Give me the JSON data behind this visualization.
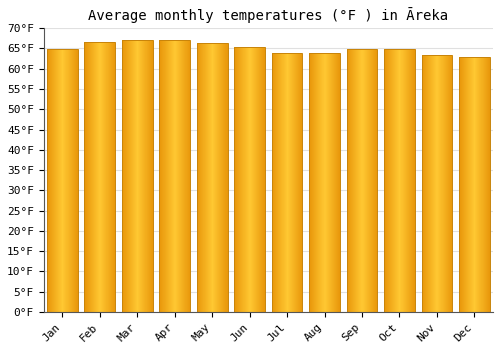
{
  "title": "Average monthly temperatures (°F ) in Āreka",
  "months": [
    "Jan",
    "Feb",
    "Mar",
    "Apr",
    "May",
    "Jun",
    "Jul",
    "Aug",
    "Sep",
    "Oct",
    "Nov",
    "Dec"
  ],
  "values": [
    64.8,
    66.5,
    67.2,
    67.0,
    66.3,
    65.3,
    64.0,
    64.0,
    64.8,
    64.8,
    63.5,
    63.0
  ],
  "ylim": [
    0,
    70
  ],
  "yticks": [
    0,
    5,
    10,
    15,
    20,
    25,
    30,
    35,
    40,
    45,
    50,
    55,
    60,
    65,
    70
  ],
  "ytick_labels": [
    "0°F",
    "5°F",
    "10°F",
    "15°F",
    "20°F",
    "25°F",
    "30°F",
    "35°F",
    "40°F",
    "45°F",
    "50°F",
    "55°F",
    "60°F",
    "65°F",
    "70°F"
  ],
  "bar_color_left": "#E8960A",
  "bar_color_center": "#FFC832",
  "bar_edge_color": "#C8840A",
  "background_color": "#ffffff",
  "plot_bg_color": "#ffffff",
  "title_fontsize": 10,
  "tick_fontsize": 8,
  "grid_color": "#e0e0e0",
  "bar_width": 0.82
}
